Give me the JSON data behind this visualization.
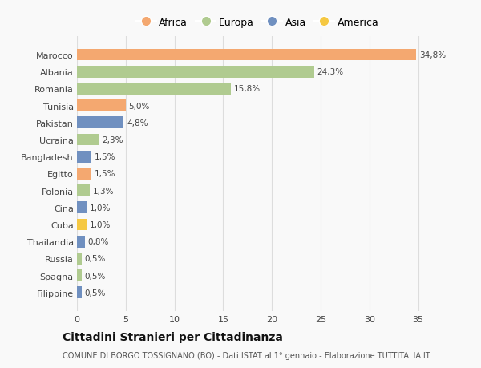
{
  "countries": [
    "Marocco",
    "Albania",
    "Romania",
    "Tunisia",
    "Pakistan",
    "Ucraina",
    "Bangladesh",
    "Egitto",
    "Polonia",
    "Cina",
    "Cuba",
    "Thailandia",
    "Russia",
    "Spagna",
    "Filippine"
  ],
  "values": [
    34.8,
    24.3,
    15.8,
    5.0,
    4.8,
    2.3,
    1.5,
    1.5,
    1.3,
    1.0,
    1.0,
    0.8,
    0.5,
    0.5,
    0.5
  ],
  "labels": [
    "34,8%",
    "24,3%",
    "15,8%",
    "5,0%",
    "4,8%",
    "2,3%",
    "1,5%",
    "1,5%",
    "1,3%",
    "1,0%",
    "1,0%",
    "0,8%",
    "0,5%",
    "0,5%",
    "0,5%"
  ],
  "continents": [
    "Africa",
    "Europa",
    "Europa",
    "Africa",
    "Asia",
    "Europa",
    "Asia",
    "Africa",
    "Europa",
    "Asia",
    "America",
    "Asia",
    "Europa",
    "Europa",
    "Asia"
  ],
  "colors": {
    "Africa": "#F4A870",
    "Europa": "#B0CB90",
    "Asia": "#7090C0",
    "America": "#F5C842"
  },
  "legend_order": [
    "Africa",
    "Europa",
    "Asia",
    "America"
  ],
  "legend_colors": [
    "#F4A870",
    "#B0CB90",
    "#7090C0",
    "#F5C842"
  ],
  "xlim": [
    0,
    37
  ],
  "xticks": [
    0,
    5,
    10,
    15,
    20,
    25,
    30,
    35
  ],
  "title": "Cittadini Stranieri per Cittadinanza",
  "subtitle": "COMUNE DI BORGO TOSSIGNANO (BO) - Dati ISTAT al 1° gennaio - Elaborazione TUTTITALIA.IT",
  "bg_color": "#f9f9f9",
  "grid_color": "#dddddd",
  "bar_height": 0.7
}
